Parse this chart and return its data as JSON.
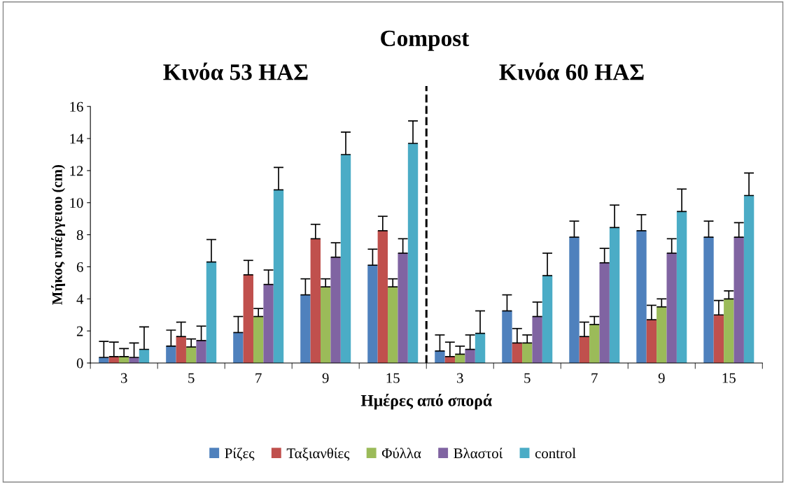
{
  "chart_data": {
    "type": "bar",
    "title": "Compost",
    "xlabel": "Ημέρες από σπορά",
    "ylabel": "Μήκος υπέργειου (cm)",
    "annotations": [
      "Κινόα 53 ΗΑΣ",
      "Κινόα 60 ΗΑΣ"
    ],
    "categories": [
      "3",
      "5",
      "7",
      "9",
      "15",
      "3",
      "5",
      "7",
      "9",
      "15"
    ],
    "ylim": [
      0,
      16
    ],
    "yticks": [
      0,
      2,
      4,
      6,
      8,
      10,
      12,
      14,
      16
    ],
    "grid": false,
    "legend": "bottom",
    "series": [
      {
        "name": "Ρίζες",
        "color": "#4f81bd",
        "values": [
          0.35,
          1.05,
          1.9,
          4.25,
          6.1,
          0.75,
          3.25,
          7.85,
          8.25,
          7.85
        ],
        "errors": [
          [
            0.35,
            1.35
          ],
          [
            1.05,
            2.05
          ],
          [
            1.9,
            2.9
          ],
          [
            4.25,
            5.25
          ],
          [
            6.1,
            7.1
          ],
          [
            0.75,
            1.75
          ],
          [
            3.25,
            4.25
          ],
          [
            7.85,
            8.85
          ],
          [
            8.25,
            9.25
          ],
          [
            7.85,
            8.85
          ]
        ]
      },
      {
        "name": "Ταξιανθίες",
        "color": "#c0504d",
        "values": [
          0.4,
          1.65,
          5.5,
          7.75,
          8.25,
          0.4,
          1.25,
          1.65,
          2.7,
          3.0
        ],
        "errors": [
          [
            0.4,
            1.3
          ],
          [
            1.65,
            2.55
          ],
          [
            5.5,
            6.4
          ],
          [
            7.75,
            8.65
          ],
          [
            8.25,
            9.15
          ],
          [
            0.4,
            1.3
          ],
          [
            1.25,
            2.15
          ],
          [
            1.65,
            2.55
          ],
          [
            2.7,
            3.6
          ],
          [
            3.0,
            3.9
          ]
        ]
      },
      {
        "name": "Φύλλα",
        "color": "#9bbb59",
        "values": [
          0.4,
          1.0,
          2.9,
          4.75,
          4.75,
          0.55,
          1.25,
          2.4,
          3.5,
          4.0
        ],
        "errors": [
          [
            0.4,
            0.9
          ],
          [
            1.0,
            1.5
          ],
          [
            2.9,
            3.4
          ],
          [
            4.75,
            5.25
          ],
          [
            4.75,
            5.25
          ],
          [
            0.55,
            1.05
          ],
          [
            1.25,
            1.75
          ],
          [
            2.4,
            2.9
          ],
          [
            3.5,
            4.0
          ],
          [
            4.0,
            4.5
          ]
        ]
      },
      {
        "name": "Βλαστοί",
        "color": "#8064a2",
        "values": [
          0.35,
          1.4,
          4.9,
          6.6,
          6.85,
          0.85,
          2.9,
          6.25,
          6.85,
          7.85
        ],
        "errors": [
          [
            0.35,
            1.25
          ],
          [
            1.4,
            2.3
          ],
          [
            4.9,
            5.8
          ],
          [
            6.6,
            7.5
          ],
          [
            6.85,
            7.75
          ],
          [
            0.85,
            1.75
          ],
          [
            2.9,
            3.8
          ],
          [
            6.25,
            7.15
          ],
          [
            6.85,
            7.75
          ],
          [
            7.85,
            8.75
          ]
        ]
      },
      {
        "name": "control",
        "color": "#4bacc6",
        "values": [
          0.85,
          6.3,
          10.8,
          13.0,
          13.7,
          1.85,
          5.45,
          8.45,
          9.45,
          10.45
        ],
        "errors": [
          [
            0.85,
            2.25
          ],
          [
            6.3,
            7.7
          ],
          [
            10.8,
            12.2
          ],
          [
            13.0,
            14.4
          ],
          [
            13.7,
            15.1
          ],
          [
            1.85,
            3.25
          ],
          [
            5.45,
            6.85
          ],
          [
            8.45,
            9.85
          ],
          [
            9.45,
            10.85
          ],
          [
            10.45,
            11.85
          ]
        ]
      }
    ]
  }
}
